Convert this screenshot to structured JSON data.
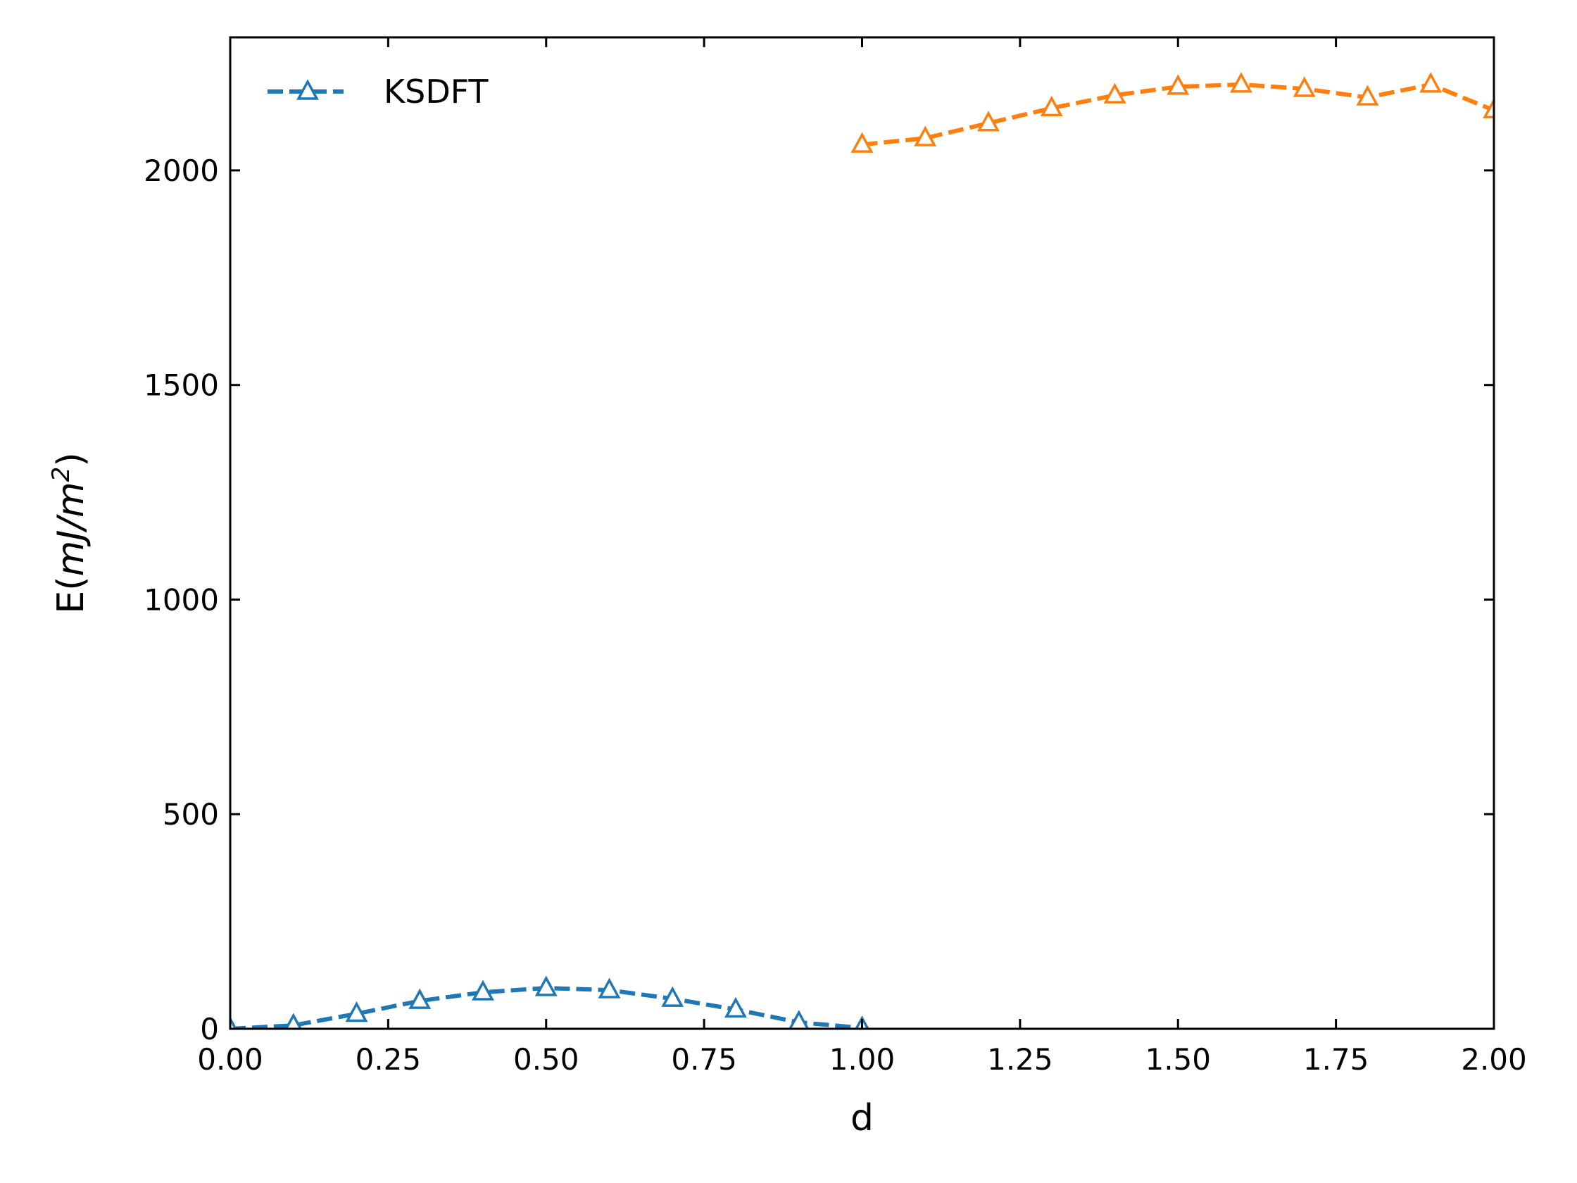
{
  "chart_data": {
    "type": "line",
    "title": "",
    "xlabel": "d",
    "ylabel": "E(mJ/m²)",
    "ylabel_parts": {
      "prefix": "E(",
      "italic": "mJ/m",
      "sup": "2",
      "suffix": ")"
    },
    "xlim": [
      0,
      2
    ],
    "ylim": [
      0,
      2310
    ],
    "grid": false,
    "legend_position": "top-left",
    "x_ticks": [
      "0.00",
      "0.25",
      "0.50",
      "0.75",
      "1.00",
      "1.25",
      "1.50",
      "1.75",
      "2.00"
    ],
    "y_ticks": [
      "0",
      "500",
      "1000",
      "1500",
      "2000"
    ],
    "series": [
      {
        "name": "KSDFT",
        "color": "#1f77b4",
        "line_style": "dashed",
        "marker": "open-triangle",
        "x": [
          0.0,
          0.1,
          0.2,
          0.3,
          0.4,
          0.5,
          0.6,
          0.7,
          0.8,
          0.9,
          1.0
        ],
        "y": [
          0,
          8,
          35,
          65,
          85,
          95,
          90,
          70,
          45,
          15,
          2
        ]
      },
      {
        "color": "#ff7f0e",
        "line_style": "dashed",
        "marker": "open-triangle",
        "x": [
          1.0,
          1.1,
          1.2,
          1.3,
          1.4,
          1.5,
          1.6,
          1.7,
          1.8,
          1.9,
          2.0
        ],
        "y": [
          2060,
          2075,
          2110,
          2145,
          2175,
          2195,
          2200,
          2190,
          2170,
          2200,
          2140
        ]
      }
    ]
  }
}
